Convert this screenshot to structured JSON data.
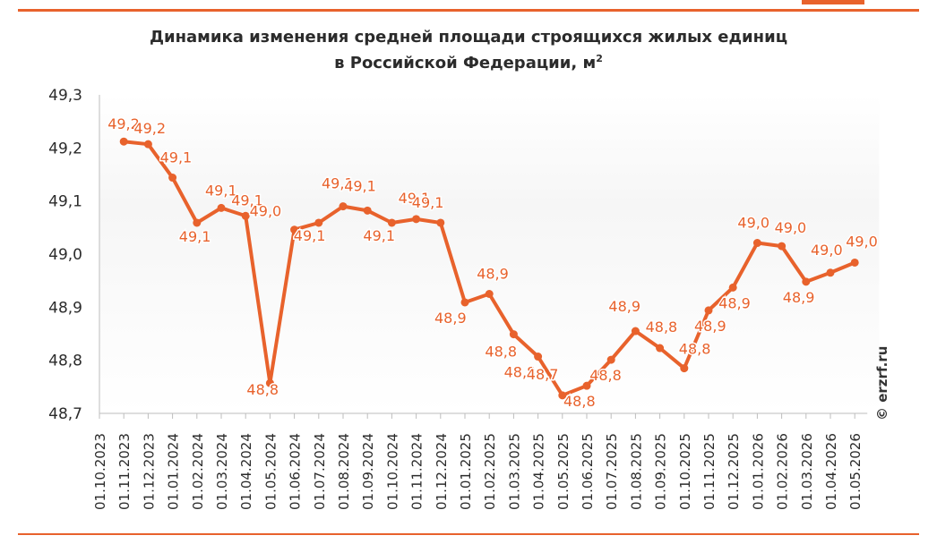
{
  "title": {
    "line1": "Динамика изменения средней площади строящихся жилых  единиц",
    "line2_prefix": "в Российской Федерации, м",
    "line2_sup": "2"
  },
  "watermark": "© erzrf.ru",
  "colors": {
    "accent": "#e8622c",
    "axis_text": "#2b2b2b",
    "axis_line": "#bdbdbd"
  },
  "chart_data": {
    "type": "line",
    "title": "Динамика изменения средней площади строящихся жилых  единиц в Российской Федерации, м2",
    "ylim": [
      48.7,
      49.3
    ],
    "yticks": [
      "49,3",
      "49,2",
      "49,1",
      "49,0",
      "48,9",
      "48,8",
      "48,7"
    ],
    "ytick_values": [
      49.3,
      49.2,
      49.1,
      49.0,
      48.9,
      48.8,
      48.7
    ],
    "grid": false,
    "categories": [
      "01.10.2023",
      "01.11.2023",
      "01.12.2023",
      "01.01.2024",
      "01.02.2024",
      "01.03.2024",
      "01.04.2024",
      "01.05.2024",
      "01.06.2024",
      "01.07.2024",
      "01.08.2024",
      "01.09.2024",
      "01.10.2024",
      "01.11.2024",
      "01.12.2024",
      "01.01.2025",
      "01.02.2025",
      "01.03.2025",
      "01.04.2025",
      "01.05.2025",
      "01.06.2025",
      "01.07.2025",
      "01.08.2025",
      "01.09.2025",
      "01.10.2025",
      "01.11.2025",
      "01.12.2025",
      "01.01.2026",
      "01.02.2026",
      "01.03.2026",
      "01.04.2026",
      "01.05.2026"
    ],
    "values": [
      null,
      49.212,
      49.207,
      49.144,
      49.059,
      49.087,
      49.072,
      48.757,
      49.046,
      49.059,
      49.09,
      49.082,
      49.059,
      49.066,
      49.059,
      48.909,
      48.925,
      48.849,
      48.807,
      48.734,
      48.752,
      48.801,
      48.855,
      48.823,
      48.785,
      48.894,
      48.937,
      49.021,
      49.015,
      48.948,
      48.965,
      48.984
    ],
    "labels": [
      null,
      "49,2",
      "49,2",
      "49,1",
      "49,1",
      "49,1",
      "49,1",
      "48,8",
      "49,0",
      "49,1",
      "49,1",
      "49,1",
      "49,1",
      "49,1",
      "49,1",
      "48,9",
      "48,9",
      "48,8",
      "48,8",
      "48,7",
      "48,8",
      "48,8",
      "48,9",
      "48,8",
      "48,8",
      "48,9",
      "48,9",
      "49,0",
      "49,0",
      "48,9",
      "49,0",
      "49,0"
    ]
  }
}
